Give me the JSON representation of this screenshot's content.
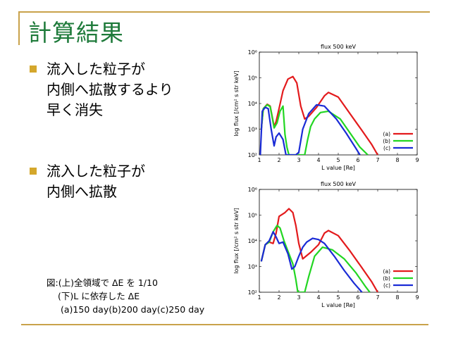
{
  "slide": {
    "title": "計算結果",
    "bullets": [
      {
        "lines": [
          "流入した粒子が",
          "内側へ拡散するより",
          "早く消失"
        ]
      },
      {
        "lines": [
          "流入した粒子が",
          "内側へ拡散"
        ]
      }
    ],
    "caption": [
      "図:(上)全領域で ΔE を 1/10",
      "(下)L に依存した ΔE",
      "(a)150 day(b)200 day(c)250 day"
    ],
    "accent_color": "#c9a24b",
    "title_color": "#1e7a3a",
    "bullet_color": "#d4a72c"
  },
  "chart_data": [
    {
      "type": "line",
      "title": "flux 500 keV",
      "xlabel": "L value [Re]",
      "ylabel": "log flux [/cm² s str keV]",
      "xlim": [
        1,
        9
      ],
      "ylim_log10": [
        2,
        6
      ],
      "x_ticks": [
        "1",
        "2",
        "3",
        "4",
        "5",
        "6",
        "7",
        "8",
        "9"
      ],
      "y_ticks": [
        "10²",
        "10³",
        "10⁴",
        "10⁵",
        "10⁶"
      ],
      "legend_position": "bottom-right",
      "series": [
        {
          "name": "(a)",
          "color": "#e31a1c",
          "x": [
            1.1,
            1.2,
            1.4,
            1.55,
            1.75,
            1.85,
            2.0,
            2.2,
            2.45,
            2.7,
            2.9,
            3.1,
            3.3,
            3.5,
            3.9,
            4.3,
            4.5,
            5.0,
            5.6,
            6.2,
            6.7,
            7.0
          ],
          "y": [
            3.0,
            3.8,
            3.97,
            3.9,
            3.1,
            3.3,
            3.8,
            4.5,
            4.95,
            5.05,
            4.8,
            3.9,
            3.4,
            3.5,
            3.85,
            4.3,
            4.43,
            4.25,
            3.6,
            2.95,
            2.4,
            2.0
          ]
        },
        {
          "name": "(b)",
          "color": "#22d622",
          "x": [
            1.1,
            1.2,
            1.4,
            1.55,
            1.75,
            1.9,
            2.05,
            2.2,
            2.3,
            2.4,
            2.5,
            2.6,
            3.3,
            3.45,
            3.6,
            3.8,
            4.1,
            4.5,
            5.1,
            5.6,
            6.1,
            6.5
          ],
          "y": [
            3.0,
            3.8,
            3.95,
            3.88,
            3.05,
            3.25,
            3.7,
            3.9,
            2.8,
            2.3,
            2.0,
            2.0,
            2.0,
            2.6,
            3.1,
            3.4,
            3.65,
            3.7,
            3.4,
            2.85,
            2.3,
            2.0
          ]
        },
        {
          "name": "(c)",
          "color": "#1a2bd6",
          "x": [
            1.05,
            1.15,
            1.3,
            1.45,
            1.6,
            1.75,
            1.85,
            2.0,
            2.2,
            2.35,
            2.5,
            2.85,
            3.0,
            3.2,
            3.5,
            3.9,
            4.3,
            4.9,
            5.4,
            5.9,
            6.1
          ],
          "y": [
            2.0,
            3.7,
            3.85,
            3.8,
            3.0,
            2.35,
            2.7,
            2.85,
            2.6,
            2.0,
            2.0,
            2.0,
            2.1,
            3.0,
            3.6,
            3.95,
            3.9,
            3.4,
            2.85,
            2.25,
            2.0
          ]
        }
      ]
    },
    {
      "type": "line",
      "title": "flux 500 keV",
      "xlabel": "L value [Re]",
      "ylabel": "log flux [/cm² s str keV]",
      "xlim": [
        1,
        9
      ],
      "ylim_log10": [
        2,
        6
      ],
      "x_ticks": [
        "1",
        "2",
        "3",
        "4",
        "5",
        "6",
        "7",
        "8",
        "9"
      ],
      "y_ticks": [
        "10²",
        "10³",
        "10⁴",
        "10⁵",
        "10⁶"
      ],
      "legend_position": "bottom-right",
      "series": [
        {
          "name": "(a)",
          "color": "#e31a1c",
          "x": [
            1.1,
            1.3,
            1.5,
            1.7,
            1.85,
            2.0,
            2.3,
            2.5,
            2.7,
            2.85,
            3.0,
            3.2,
            3.6,
            4.0,
            4.3,
            4.5,
            5.0,
            5.6,
            6.2,
            6.7,
            7.0
          ],
          "y": [
            3.2,
            3.85,
            3.95,
            3.9,
            4.3,
            4.95,
            5.1,
            5.25,
            5.1,
            4.6,
            3.9,
            3.3,
            3.55,
            3.85,
            4.3,
            4.4,
            4.2,
            3.6,
            2.95,
            2.4,
            2.0
          ]
        },
        {
          "name": "(b)",
          "color": "#22d622",
          "x": [
            1.1,
            1.3,
            1.5,
            1.7,
            1.9,
            2.05,
            2.25,
            2.45,
            2.7,
            2.85,
            2.95,
            3.0,
            3.3,
            3.5,
            3.8,
            4.2,
            4.7,
            5.3,
            5.9,
            6.4,
            6.6
          ],
          "y": [
            3.2,
            3.85,
            3.95,
            4.35,
            4.6,
            4.5,
            4.0,
            3.6,
            3.1,
            2.5,
            2.0,
            2.0,
            2.0,
            2.6,
            3.4,
            3.75,
            3.65,
            3.3,
            2.75,
            2.2,
            2.0
          ]
        },
        {
          "name": "(c)",
          "color": "#1a2bd6",
          "x": [
            1.1,
            1.3,
            1.5,
            1.7,
            1.85,
            2.0,
            2.2,
            2.45,
            2.65,
            2.8,
            3.0,
            3.2,
            3.4,
            3.7,
            4.0,
            4.3,
            4.8,
            5.3,
            5.8,
            6.2
          ],
          "y": [
            3.2,
            3.85,
            4.0,
            4.35,
            4.15,
            3.9,
            3.95,
            3.5,
            2.9,
            3.0,
            3.4,
            3.75,
            3.95,
            4.1,
            4.05,
            3.9,
            3.4,
            2.85,
            2.35,
            2.0
          ]
        }
      ]
    }
  ]
}
